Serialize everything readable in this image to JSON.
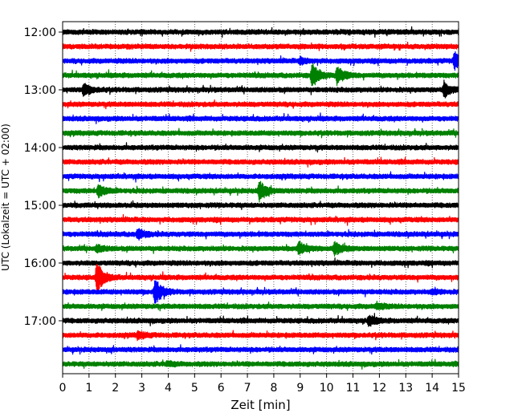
{
  "chart_data": {
    "type": "line",
    "title": "",
    "xlabel": "Zeit  [min]",
    "ylabel": "UTC (Lokalzeit = UTC + 02:00)",
    "xlim": [
      0,
      15
    ],
    "x_ticks": [
      "0",
      "1",
      "2",
      "3",
      "4",
      "5",
      "6",
      "7",
      "8",
      "9",
      "10",
      "11",
      "12",
      "13",
      "14",
      "15"
    ],
    "y_hour_ticks": [
      "12:00",
      "13:00",
      "14:00",
      "15:00",
      "16:00",
      "17:00"
    ],
    "grid": "vertical-dotted",
    "line_start_utc": "12:00",
    "line_interval_min": 15,
    "colors": [
      "#000000",
      "#ff0000",
      "#0000ff",
      "#008000"
    ],
    "lines": [
      {
        "start": "12:00",
        "color": "#000000",
        "events": []
      },
      {
        "start": "12:15",
        "color": "#ff0000",
        "events": []
      },
      {
        "start": "12:30",
        "color": "#0000ff",
        "events": [
          {
            "t": 9.0,
            "amp": 0.25
          },
          {
            "t": 14.85,
            "amp": 0.9
          }
        ]
      },
      {
        "start": "12:45",
        "color": "#008000",
        "events": [
          {
            "t": 9.45,
            "amp": 1.2
          },
          {
            "t": 10.4,
            "amp": 0.9
          }
        ]
      },
      {
        "start": "13:00",
        "color": "#000000",
        "events": [
          {
            "t": 0.8,
            "amp": 0.6
          },
          {
            "t": 14.45,
            "amp": 0.7
          }
        ]
      },
      {
        "start": "13:15",
        "color": "#ff0000",
        "events": []
      },
      {
        "start": "13:30",
        "color": "#0000ff",
        "events": []
      },
      {
        "start": "13:45",
        "color": "#008000",
        "events": []
      },
      {
        "start": "14:00",
        "color": "#000000",
        "events": []
      },
      {
        "start": "14:15",
        "color": "#ff0000",
        "events": []
      },
      {
        "start": "14:30",
        "color": "#0000ff",
        "events": []
      },
      {
        "start": "14:45",
        "color": "#008000",
        "events": [
          {
            "t": 1.35,
            "amp": 0.6
          },
          {
            "t": 7.45,
            "amp": 1.0
          }
        ]
      },
      {
        "start": "15:00",
        "color": "#000000",
        "events": []
      },
      {
        "start": "15:15",
        "color": "#ff0000",
        "events": []
      },
      {
        "start": "15:30",
        "color": "#0000ff",
        "events": [
          {
            "t": 2.85,
            "amp": 0.5
          }
        ]
      },
      {
        "start": "15:45",
        "color": "#008000",
        "events": [
          {
            "t": 1.3,
            "amp": 0.3
          },
          {
            "t": 8.95,
            "amp": 0.6
          },
          {
            "t": 10.3,
            "amp": 0.7
          }
        ]
      },
      {
        "start": "16:00",
        "color": "#000000",
        "events": []
      },
      {
        "start": "16:15",
        "color": "#ff0000",
        "events": [
          {
            "t": 1.3,
            "amp": 1.5
          }
        ]
      },
      {
        "start": "16:30",
        "color": "#0000ff",
        "events": [
          {
            "t": 3.5,
            "amp": 1.3
          },
          {
            "t": 14.0,
            "amp": 0.2
          }
        ]
      },
      {
        "start": "16:45",
        "color": "#008000",
        "events": [
          {
            "t": 11.9,
            "amp": 0.3
          }
        ]
      },
      {
        "start": "17:00",
        "color": "#000000",
        "events": [
          {
            "t": 11.6,
            "amp": 0.5
          }
        ]
      },
      {
        "start": "17:15",
        "color": "#ff0000",
        "events": [
          {
            "t": 2.85,
            "amp": 0.35
          }
        ]
      },
      {
        "start": "17:30",
        "color": "#0000ff",
        "events": []
      },
      {
        "start": "17:45",
        "color": "#008000",
        "events": [
          {
            "t": 3.95,
            "amp": 0.2
          }
        ]
      }
    ]
  }
}
